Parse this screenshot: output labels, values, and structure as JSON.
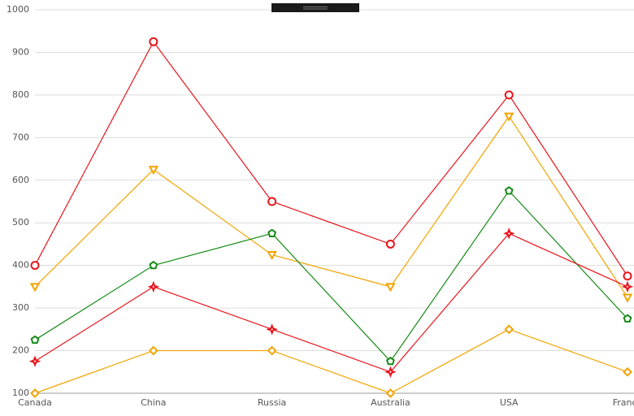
{
  "chart_data": {
    "type": "line",
    "categories": [
      "Canada",
      "China",
      "Russia",
      "Australia",
      "USA",
      "France"
    ],
    "series": [
      {
        "color": "#e8151b",
        "marker": "circle",
        "values": [
          400,
          925,
          550,
          450,
          800,
          375
        ]
      },
      {
        "color": "#f2a300",
        "marker": "triangle-down",
        "values": [
          350,
          625,
          425,
          350,
          750,
          325
        ]
      },
      {
        "color": "#168a16",
        "marker": "pentagon",
        "values": [
          225,
          400,
          475,
          175,
          575,
          275
        ]
      },
      {
        "color": "#e8151b",
        "marker": "star",
        "values": [
          175,
          350,
          250,
          150,
          475,
          350
        ]
      },
      {
        "color": "#f2a300",
        "marker": "diamond",
        "values": [
          100,
          200,
          200,
          100,
          250,
          150
        ]
      }
    ],
    "ylim": [
      100,
      1000
    ],
    "yticks": [
      100,
      200,
      300,
      400,
      500,
      600,
      700,
      800,
      900,
      1000
    ],
    "grid": true
  }
}
